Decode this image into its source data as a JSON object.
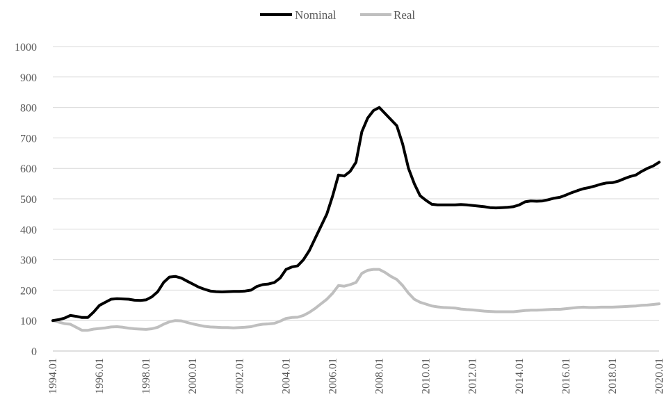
{
  "chart_data": {
    "type": "line",
    "title": "",
    "xlabel": "",
    "ylabel": "",
    "ylim": [
      0,
      1000
    ],
    "y_ticks": [
      "0",
      "100",
      "200",
      "300",
      "400",
      "500",
      "600",
      "700",
      "800",
      "900",
      "1000"
    ],
    "x_range": [
      1994.0,
      2020.0
    ],
    "x_ticks": [
      "1994.01",
      "1996.01",
      "1998.01",
      "2000.01",
      "2002.01",
      "2004.01",
      "2006.01",
      "2008.01",
      "2010.01",
      "2012.01",
      "2014.01",
      "2016.01",
      "2018.01",
      "2020.01"
    ],
    "grid": "horizontal",
    "legend_position": "top-center",
    "series": [
      {
        "name": "Nominal",
        "color": "#000000",
        "points": [
          [
            "1994.01",
            100
          ],
          [
            "1994.04",
            103
          ],
          [
            "1994.07",
            108
          ],
          [
            "1994.10",
            117
          ],
          [
            "1995.01",
            114
          ],
          [
            "1995.04",
            110
          ],
          [
            "1995.07",
            110
          ],
          [
            "1995.10",
            128
          ],
          [
            "1996.01",
            150
          ],
          [
            "1996.04",
            160
          ],
          [
            "1996.07",
            170
          ],
          [
            "1996.10",
            172
          ],
          [
            "1997.01",
            171
          ],
          [
            "1997.04",
            170
          ],
          [
            "1997.07",
            167
          ],
          [
            "1997.10",
            166
          ],
          [
            "1998.01",
            168
          ],
          [
            "1998.04",
            178
          ],
          [
            "1998.07",
            195
          ],
          [
            "1998.10",
            225
          ],
          [
            "1999.01",
            243
          ],
          [
            "1999.04",
            245
          ],
          [
            "1999.07",
            240
          ],
          [
            "1999.10",
            230
          ],
          [
            "2000.01",
            220
          ],
          [
            "2000.04",
            210
          ],
          [
            "2000.07",
            203
          ],
          [
            "2000.10",
            197
          ],
          [
            "2001.01",
            195
          ],
          [
            "2001.04",
            194
          ],
          [
            "2001.07",
            195
          ],
          [
            "2001.10",
            196
          ],
          [
            "2002.01",
            196
          ],
          [
            "2002.04",
            197
          ],
          [
            "2002.07",
            200
          ],
          [
            "2002.10",
            212
          ],
          [
            "2003.01",
            218
          ],
          [
            "2003.04",
            220
          ],
          [
            "2003.07",
            225
          ],
          [
            "2003.10",
            240
          ],
          [
            "2004.01",
            268
          ],
          [
            "2004.04",
            276
          ],
          [
            "2004.07",
            280
          ],
          [
            "2004.10",
            300
          ],
          [
            "2005.01",
            330
          ],
          [
            "2005.04",
            370
          ],
          [
            "2005.07",
            410
          ],
          [
            "2005.10",
            450
          ],
          [
            "2006.01",
            510
          ],
          [
            "2006.04",
            578
          ],
          [
            "2006.07",
            575
          ],
          [
            "2006.10",
            590
          ],
          [
            "2007.01",
            620
          ],
          [
            "2007.04",
            720
          ],
          [
            "2007.07",
            765
          ],
          [
            "2007.10",
            790
          ],
          [
            "2008.01",
            800
          ],
          [
            "2008.04",
            780
          ],
          [
            "2008.07",
            760
          ],
          [
            "2008.10",
            740
          ],
          [
            "2009.01",
            680
          ],
          [
            "2009.04",
            600
          ],
          [
            "2009.07",
            550
          ],
          [
            "2009.10",
            510
          ],
          [
            "2010.01",
            495
          ],
          [
            "2010.04",
            482
          ],
          [
            "2010.07",
            480
          ],
          [
            "2010.10",
            480
          ],
          [
            "2011.01",
            480
          ],
          [
            "2011.04",
            480
          ],
          [
            "2011.07",
            481
          ],
          [
            "2011.10",
            480
          ],
          [
            "2012.01",
            478
          ],
          [
            "2012.04",
            476
          ],
          [
            "2012.07",
            474
          ],
          [
            "2012.10",
            471
          ],
          [
            "2013.01",
            470
          ],
          [
            "2013.04",
            471
          ],
          [
            "2013.07",
            472
          ],
          [
            "2013.10",
            474
          ],
          [
            "2014.01",
            480
          ],
          [
            "2014.04",
            490
          ],
          [
            "2014.07",
            493
          ],
          [
            "2014.10",
            492
          ],
          [
            "2015.01",
            493
          ],
          [
            "2015.04",
            497
          ],
          [
            "2015.07",
            502
          ],
          [
            "2015.10",
            505
          ],
          [
            "2016.01",
            512
          ],
          [
            "2016.04",
            520
          ],
          [
            "2016.07",
            527
          ],
          [
            "2016.10",
            533
          ],
          [
            "2017.01",
            537
          ],
          [
            "2017.04",
            542
          ],
          [
            "2017.07",
            548
          ],
          [
            "2017.10",
            552
          ],
          [
            "2018.01",
            553
          ],
          [
            "2018.04",
            558
          ],
          [
            "2018.07",
            566
          ],
          [
            "2018.10",
            573
          ],
          [
            "2019.01",
            578
          ],
          [
            "2019.04",
            590
          ],
          [
            "2019.07",
            600
          ],
          [
            "2019.10",
            608
          ],
          [
            "2020.01",
            620
          ]
        ]
      },
      {
        "name": "Real",
        "color": "#bfbfbf",
        "points": [
          [
            "1994.01",
            100
          ],
          [
            "1994.04",
            95
          ],
          [
            "1994.07",
            90
          ],
          [
            "1994.10",
            88
          ],
          [
            "1995.01",
            78
          ],
          [
            "1995.04",
            68
          ],
          [
            "1995.07",
            68
          ],
          [
            "1995.10",
            72
          ],
          [
            "1996.01",
            74
          ],
          [
            "1996.04",
            76
          ],
          [
            "1996.07",
            79
          ],
          [
            "1996.10",
            80
          ],
          [
            "1997.01",
            78
          ],
          [
            "1997.04",
            75
          ],
          [
            "1997.07",
            73
          ],
          [
            "1997.10",
            72
          ],
          [
            "1998.01",
            71
          ],
          [
            "1998.04",
            73
          ],
          [
            "1998.07",
            78
          ],
          [
            "1998.10",
            88
          ],
          [
            "1999.01",
            96
          ],
          [
            "1999.04",
            100
          ],
          [
            "1999.07",
            99
          ],
          [
            "1999.10",
            94
          ],
          [
            "2000.01",
            89
          ],
          [
            "2000.04",
            85
          ],
          [
            "2000.07",
            81
          ],
          [
            "2000.10",
            79
          ],
          [
            "2001.01",
            78
          ],
          [
            "2001.04",
            77
          ],
          [
            "2001.07",
            77
          ],
          [
            "2001.10",
            76
          ],
          [
            "2002.01",
            77
          ],
          [
            "2002.04",
            78
          ],
          [
            "2002.07",
            80
          ],
          [
            "2002.10",
            85
          ],
          [
            "2003.01",
            88
          ],
          [
            "2003.04",
            89
          ],
          [
            "2003.07",
            91
          ],
          [
            "2003.10",
            98
          ],
          [
            "2004.01",
            107
          ],
          [
            "2004.04",
            110
          ],
          [
            "2004.07",
            111
          ],
          [
            "2004.10",
            117
          ],
          [
            "2005.01",
            127
          ],
          [
            "2005.04",
            140
          ],
          [
            "2005.07",
            155
          ],
          [
            "2005.10",
            170
          ],
          [
            "2006.01",
            190
          ],
          [
            "2006.04",
            215
          ],
          [
            "2006.07",
            213
          ],
          [
            "2006.10",
            218
          ],
          [
            "2007.01",
            225
          ],
          [
            "2007.04",
            255
          ],
          [
            "2007.07",
            265
          ],
          [
            "2007.10",
            268
          ],
          [
            "2008.01",
            268
          ],
          [
            "2008.04",
            258
          ],
          [
            "2008.07",
            245
          ],
          [
            "2008.10",
            235
          ],
          [
            "2009.01",
            215
          ],
          [
            "2009.04",
            190
          ],
          [
            "2009.07",
            170
          ],
          [
            "2009.10",
            160
          ],
          [
            "2010.01",
            154
          ],
          [
            "2010.04",
            148
          ],
          [
            "2010.07",
            145
          ],
          [
            "2010.10",
            143
          ],
          [
            "2011.01",
            142
          ],
          [
            "2011.04",
            141
          ],
          [
            "2011.07",
            138
          ],
          [
            "2011.10",
            136
          ],
          [
            "2012.01",
            135
          ],
          [
            "2012.04",
            133
          ],
          [
            "2012.07",
            131
          ],
          [
            "2012.10",
            130
          ],
          [
            "2013.01",
            129
          ],
          [
            "2013.04",
            129
          ],
          [
            "2013.07",
            129
          ],
          [
            "2013.10",
            129
          ],
          [
            "2014.01",
            131
          ],
          [
            "2014.04",
            133
          ],
          [
            "2014.07",
            134
          ],
          [
            "2014.10",
            134
          ],
          [
            "2015.01",
            135
          ],
          [
            "2015.04",
            136
          ],
          [
            "2015.07",
            137
          ],
          [
            "2015.10",
            137
          ],
          [
            "2016.01",
            139
          ],
          [
            "2016.04",
            141
          ],
          [
            "2016.07",
            143
          ],
          [
            "2016.10",
            144
          ],
          [
            "2017.01",
            143
          ],
          [
            "2017.04",
            143
          ],
          [
            "2017.07",
            144
          ],
          [
            "2017.10",
            144
          ],
          [
            "2018.01",
            144
          ],
          [
            "2018.04",
            145
          ],
          [
            "2018.07",
            146
          ],
          [
            "2018.10",
            147
          ],
          [
            "2019.01",
            148
          ],
          [
            "2019.04",
            150
          ],
          [
            "2019.07",
            151
          ],
          [
            "2019.10",
            153
          ],
          [
            "2020.01",
            155
          ]
        ]
      }
    ]
  }
}
